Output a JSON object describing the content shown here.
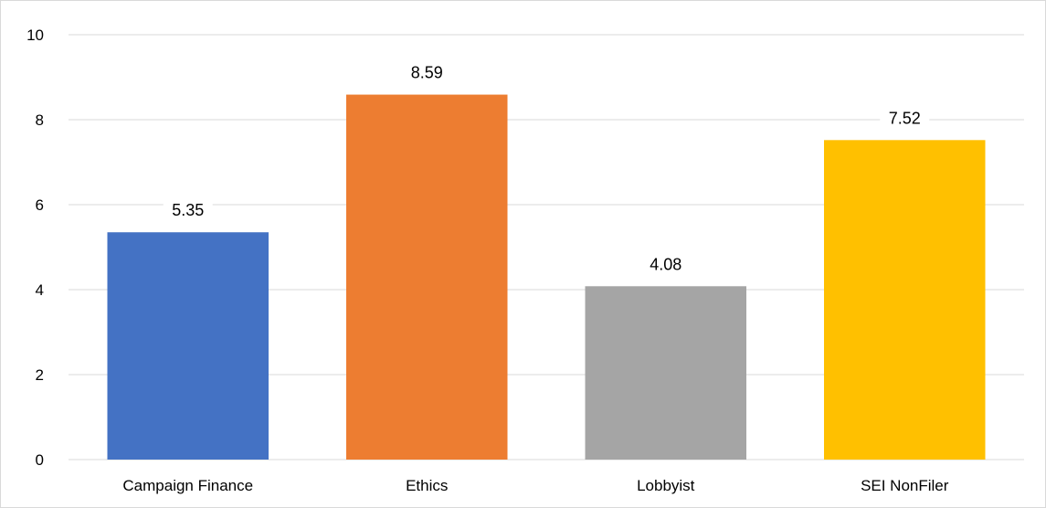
{
  "chart_data": {
    "type": "bar",
    "title": "",
    "xlabel": "",
    "ylabel": "",
    "categories": [
      "Campaign Finance",
      "Ethics",
      "Lobbyist",
      "SEI NonFiler"
    ],
    "values": [
      5.35,
      8.59,
      4.08,
      7.52
    ],
    "data_labels": [
      "5.35",
      "8.59",
      "4.08",
      "7.52"
    ],
    "colors": [
      "#4472c4",
      "#ed7d31",
      "#a5a5a5",
      "#ffc000"
    ],
    "ylim": [
      0,
      10
    ],
    "yticks": [
      0,
      2,
      4,
      6,
      8,
      10
    ],
    "ytick_labels": [
      "0",
      "2",
      "4",
      "6",
      "8",
      "10"
    ],
    "grid": true,
    "gridline_color": "#d9d9d9",
    "legend": "none"
  }
}
